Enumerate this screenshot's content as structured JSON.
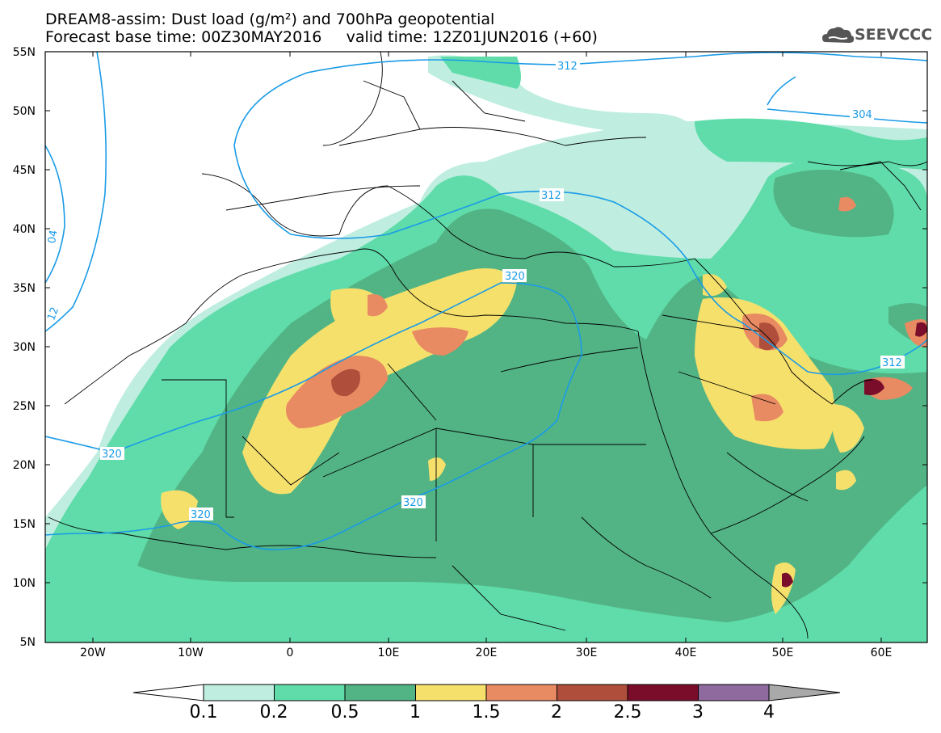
{
  "title": {
    "line1": "DREAM8-assim: Dust load (g/m²) and 700hPa geopotential",
    "line2": "Forecast base time: 00Z30MAY2016     valid time: 12Z01JUN2016 (+60)"
  },
  "logo": {
    "text": "SEEVCCC",
    "icon": "cloud-icon"
  },
  "axes": {
    "lat_labels": [
      "55N",
      "50N",
      "45N",
      "40N",
      "35N",
      "30N",
      "25N",
      "20N",
      "15N",
      "10N",
      "5N"
    ],
    "lon_labels": [
      "20W",
      "10W",
      "0",
      "10E",
      "20E",
      "30E",
      "40E",
      "50E",
      "60E"
    ]
  },
  "contours": {
    "labels": [
      "312",
      "312",
      "304",
      "04",
      "12",
      "320",
      "320",
      "320",
      "320",
      "312"
    ]
  },
  "colorbar": {
    "levels": [
      "0.1",
      "0.2",
      "0.5",
      "1",
      "1.5",
      "2",
      "2.5",
      "3",
      "4"
    ],
    "colors": [
      "#ffffff",
      "#bfeee0",
      "#5fdcaa",
      "#52b485",
      "#f6e06c",
      "#e88a62",
      "#b04e3c",
      "#7a0e2a",
      "#8e6a9e",
      "#a9a9a9"
    ]
  },
  "map_colors": {
    "land_bg": "#ffffff",
    "dust_01": "#bfeee0",
    "dust_02": "#5fdcaa",
    "dust_05": "#52b485",
    "dust_1": "#f6e06c",
    "dust_15": "#e88a62",
    "dust_2": "#b04e3c",
    "dust_25": "#7a0e2a",
    "dust_3": "#8e6a9e",
    "contour": "#1a9be6"
  }
}
